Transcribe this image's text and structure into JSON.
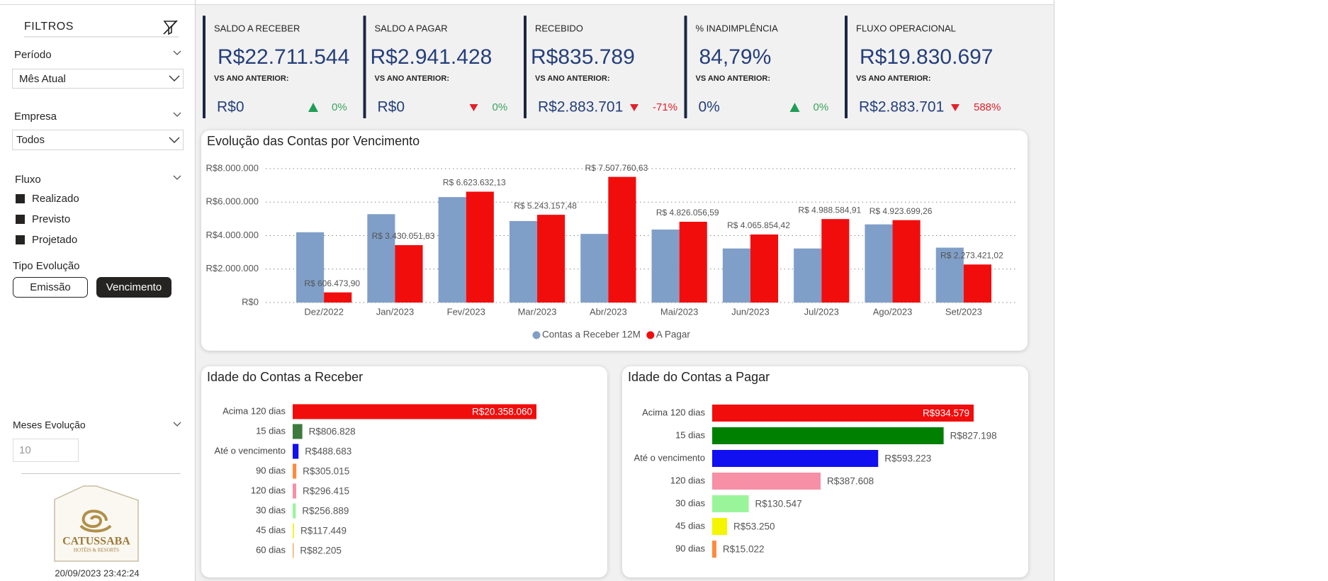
{
  "sidebar": {
    "title": "FILTROS",
    "filters": [
      {
        "label": "Período",
        "value": "Mês Atual"
      },
      {
        "label": "Empresa",
        "value": "Todos"
      }
    ],
    "fluxo": {
      "label": "Fluxo",
      "options": [
        "Realizado",
        "Previsto",
        "Projetado"
      ]
    },
    "tipo_evolucao": {
      "label": "Tipo Evolução",
      "options": [
        "Emissão",
        "Vencimento"
      ],
      "selected": "Vencimento"
    },
    "meses_evolucao": {
      "label": "Meses Evolução",
      "value": "10"
    },
    "logo": {
      "name": "CATUSSABA",
      "tagline": "HOTÉIS & RESORTS"
    },
    "timestamp": "20/09/2023 23:42:24"
  },
  "kpis": [
    {
      "title": "SALDO A RECEBER",
      "value": "R$22.711.544",
      "compare_label": "VS ANO ANTERIOR:",
      "compare_value": "R$0",
      "change": "0%",
      "trend": "up",
      "trend_color": "#1e9e57",
      "change_color": "#3aa45f"
    },
    {
      "title": "SALDO A PAGAR",
      "value": "R$2.941.428",
      "compare_label": "VS ANO ANTERIOR:",
      "compare_value": "R$0",
      "change": "0%",
      "trend": "down",
      "trend_color": "#e3202b",
      "change_color": "#3aa45f"
    },
    {
      "title": "RECEBIDO",
      "value": "R$835.789",
      "compare_label": "VS ANO ANTERIOR:",
      "compare_value": "R$2.883.701",
      "change": "-71%",
      "trend": "down",
      "trend_color": "#e3202b",
      "change_color": "#e3202b"
    },
    {
      "title": "% INADIMPLÊNCIA",
      "value": "84,79%",
      "compare_label": "VS ANO ANTERIOR:",
      "compare_value": "0%",
      "change": "0%",
      "trend": "up",
      "trend_color": "#1e9e57",
      "change_color": "#3aa45f"
    },
    {
      "title": "FLUXO OPERACIONAL",
      "value": "R$19.830.697",
      "compare_label": "VS ANO ANTERIOR:",
      "compare_value": "R$2.883.701",
      "change": "588%",
      "trend": "down",
      "trend_color": "#e3202b",
      "change_color": "#e3202b"
    }
  ],
  "chart_data": [
    {
      "type": "bar",
      "title": "Evolução das Contas por Vencimento",
      "categories": [
        "Dez/2022",
        "Jan/2023",
        "Fev/2023",
        "Mar/2023",
        "Abr/2023",
        "Mai/2023",
        "Jun/2023",
        "Jul/2023",
        "Ago/2023",
        "Set/2023"
      ],
      "series": [
        {
          "name": "Contas a Receber 12M",
          "color": "#809fc8",
          "values": [
            4200000,
            5280000,
            6300000,
            4870000,
            4100000,
            4360000,
            3230000,
            3230000,
            4670000,
            3280000
          ]
        },
        {
          "name": "A Pagar",
          "color": "#f20d0d",
          "values": [
            606473.9,
            3430051.83,
            6623632.13,
            5243157.48,
            7507760.63,
            4826056.59,
            4065854.42,
            4988584.91,
            4923699.26,
            2273421.02
          ],
          "value_labels": [
            "R$ 606.473,90",
            "R$ 3.430.051,83",
            "R$ 6.623.632,13",
            "R$ 5.243.157,48",
            "R$ 7.507.760,63",
            "R$ 4.826.056,59",
            "R$ 4.065.854,42",
            "R$ 4.988.584,91",
            "R$ 4.923.699,26",
            "R$ 2.273.421,02"
          ]
        }
      ],
      "ylim": [
        0,
        8000000
      ],
      "yticks": [
        {
          "value": 0,
          "label": "R$0"
        },
        {
          "value": 2000000,
          "label": "R$2.000.000"
        },
        {
          "value": 4000000,
          "label": "R$4.000.000"
        },
        {
          "value": 6000000,
          "label": "R$6.000.000"
        },
        {
          "value": 8000000,
          "label": "R$8.000.000"
        }
      ],
      "grid": true,
      "legend": "bottom"
    },
    {
      "type": "hbar",
      "title": "Idade do Contas a Receber",
      "categories": [
        "Acima 120 dias",
        "15 dias",
        "Até o vencimento",
        "90 dias",
        "120 dias",
        "30 dias",
        "45 dias",
        "60 dias"
      ],
      "values": [
        20358060,
        806828,
        488683,
        305015,
        296415,
        256889,
        117449,
        82205
      ],
      "value_labels": [
        "R$20.358.060",
        "R$806.828",
        "R$488.683",
        "R$305.015",
        "R$296.415",
        "R$256.889",
        "R$117.449",
        "R$82.205"
      ],
      "colors": [
        "#f20d0d",
        "#3e7a3e",
        "#1010f0",
        "#ff8a3d",
        "#f78fa7",
        "#9af59a",
        "#f5f52a",
        "#f4a460"
      ]
    },
    {
      "type": "hbar",
      "title": "Idade do Contas a Pagar",
      "categories": [
        "Acima 120 dias",
        "15 dias",
        "Até o vencimento",
        "120 dias",
        "30 dias",
        "45 dias",
        "90 dias"
      ],
      "values": [
        934579,
        827198,
        593223,
        387608,
        130547,
        53250,
        15022
      ],
      "value_labels": [
        "R$934.579",
        "R$827.198",
        "R$593.223",
        "R$387.608",
        "R$130.547",
        "R$53.250",
        "R$15.022"
      ],
      "colors": [
        "#f20d0d",
        "#008000",
        "#1010f0",
        "#f78fa7",
        "#9af59a",
        "#f5f500",
        "#ff8a3d"
      ]
    }
  ]
}
